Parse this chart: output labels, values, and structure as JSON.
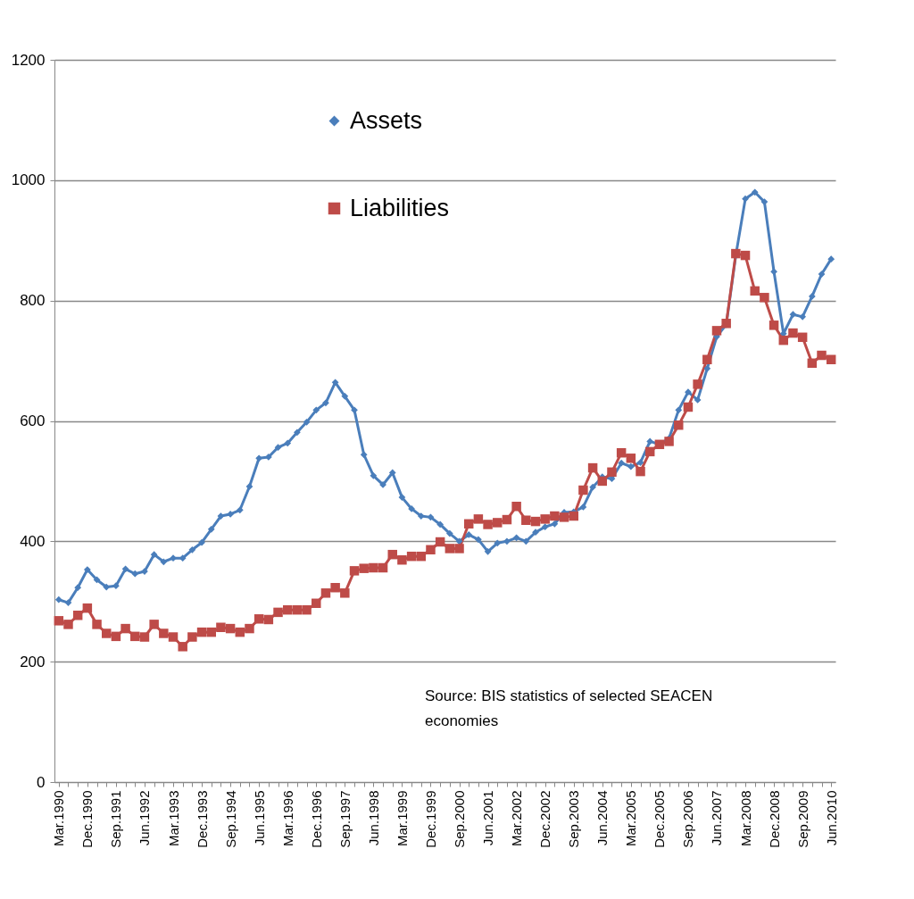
{
  "chart_data": {
    "type": "line",
    "categories": [
      "Mar.1990",
      null,
      null,
      "Dec.1990",
      null,
      null,
      "Sep.1991",
      null,
      null,
      "Jun.1992",
      null,
      null,
      "Mar.1993",
      null,
      null,
      "Dec.1993",
      null,
      null,
      "Sep.1994",
      null,
      null,
      "Jun.1995",
      null,
      null,
      "Mar.1996",
      null,
      null,
      "Dec.1996",
      null,
      null,
      "Sep.1997",
      null,
      null,
      "Jun.1998",
      null,
      null,
      "Mar.1999",
      null,
      null,
      "Dec.1999",
      null,
      null,
      "Sep.2000",
      null,
      null,
      "Jun.2001",
      null,
      null,
      "Mar.2002",
      null,
      null,
      "Dec.2002",
      null,
      null,
      "Sep.2003",
      null,
      null,
      "Jun.2004",
      null,
      null,
      "Mar.2005",
      null,
      null,
      "Dec.2005",
      null,
      null,
      "Sep.2006",
      null,
      null,
      "Jun.2007",
      null,
      null,
      "Mar.2008",
      null,
      null,
      "Dec.2008",
      null,
      null,
      "Sep.2009",
      null,
      null,
      "Jun.2010"
    ],
    "series": [
      {
        "name": "Assets",
        "color": "#4a7ebb",
        "marker": "diamond",
        "values": [
          303,
          298,
          323,
          353,
          336,
          324,
          326,
          354,
          346,
          350,
          378,
          366,
          372,
          372,
          386,
          398,
          420,
          442,
          445,
          452,
          491,
          538,
          540,
          556,
          563,
          581,
          598,
          618,
          630,
          664,
          641,
          618,
          544,
          509,
          494,
          514,
          473,
          454,
          442,
          440,
          428,
          413,
          400,
          411,
          403,
          383,
          397,
          400,
          406,
          400,
          415,
          424,
          429,
          448,
          449,
          457,
          490,
          507,
          504,
          530,
          524,
          531,
          566,
          561,
          571,
          618,
          648,
          635,
          687,
          740,
          760,
          875,
          969,
          980,
          964,
          848,
          745,
          777,
          773,
          807,
          844,
          869
        ]
      },
      {
        "name": "Liabilities",
        "color": "#be4b48",
        "marker": "square",
        "values": [
          268,
          262,
          277,
          289,
          262,
          247,
          242,
          255,
          242,
          241,
          262,
          247,
          241,
          225,
          241,
          249,
          249,
          257,
          255,
          249,
          255,
          271,
          270,
          282,
          286,
          286,
          286,
          297,
          314,
          323,
          314,
          351,
          355,
          356,
          356,
          378,
          369,
          375,
          375,
          386,
          399,
          388,
          388,
          429,
          437,
          428,
          431,
          436,
          458,
          435,
          433,
          437,
          442,
          440,
          442,
          485,
          522,
          500,
          515,
          547,
          538,
          516,
          549,
          561,
          566,
          593,
          623,
          661,
          702,
          750,
          762,
          878,
          875,
          816,
          805,
          759,
          734,
          746,
          739,
          696,
          709,
          702
        ]
      }
    ],
    "ylim": [
      0,
      1200
    ],
    "yticks": [
      0,
      200,
      400,
      600,
      800,
      1000,
      1200
    ],
    "grid": "y",
    "legend": "top",
    "annotations": [
      "Source: BIS statistics of selected  SEACEN\neconomies"
    ]
  }
}
